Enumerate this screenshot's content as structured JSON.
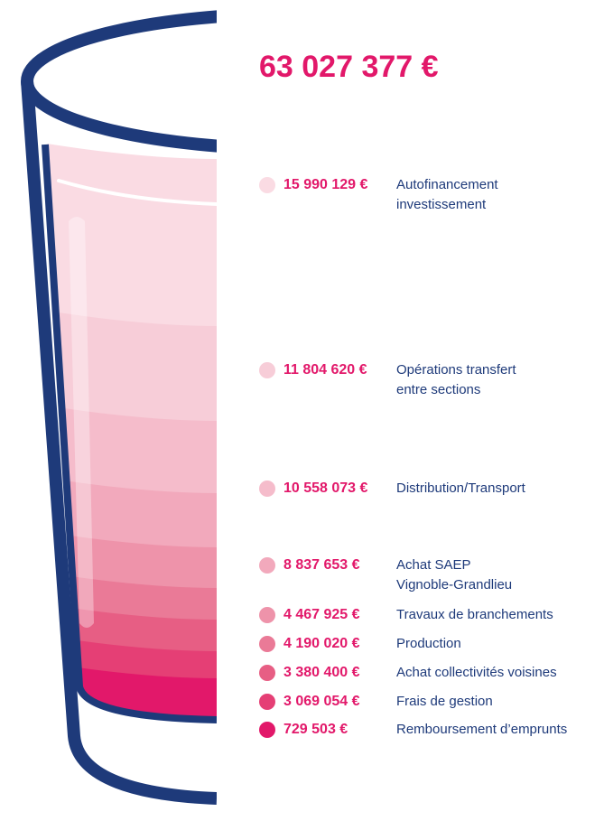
{
  "title": "63 027 377 €",
  "items": [
    {
      "amount": "15 990 129 €",
      "label": [
        "Autofinancement",
        "investissement"
      ],
      "color": "#fadbe3"
    },
    {
      "amount": "11 804 620 €",
      "label": [
        "Opérations transfert",
        "entre sections"
      ],
      "color": "#f7cdd8"
    },
    {
      "amount": "10 558 073 €",
      "label": [
        "Distribution/Transport"
      ],
      "color": "#f5bccb"
    },
    {
      "amount": "8 837 653 €",
      "label": [
        "Achat SAEP",
        "Vignoble-Grandlieu"
      ],
      "color": "#f2a9bc"
    },
    {
      "amount": "4 467 925 €",
      "label": [
        "Travaux de branchements"
      ],
      "color": "#ee93aa"
    },
    {
      "amount": "4 190 020 €",
      "label": [
        "Production"
      ],
      "color": "#ea7a97"
    },
    {
      "amount": "3 380 400 €",
      "label": [
        "Achat collectivités voisines"
      ],
      "color": "#e75e84"
    },
    {
      "amount": "3 069 054 €",
      "label": [
        "Frais de gestion"
      ],
      "color": "#e53f75"
    },
    {
      "amount": "729 503 €",
      "label": [
        "Remboursement d’emprunts"
      ],
      "color": "#e2186a"
    }
  ]
}
